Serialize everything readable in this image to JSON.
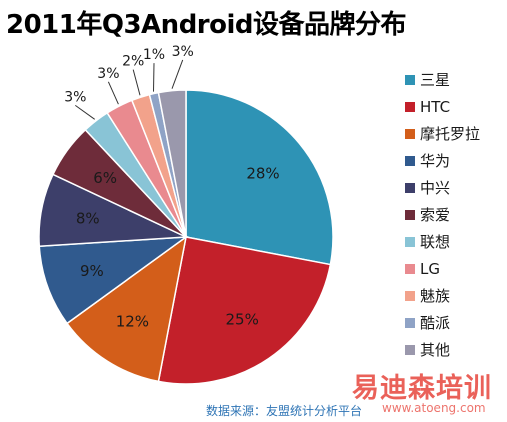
{
  "chart_data": {
    "type": "pie",
    "title": "2011年Q3Android设备品牌分布",
    "categories": [
      "三星",
      "HTC",
      "摩托罗拉",
      "华为",
      "中兴",
      "索爱",
      "联想",
      "LG",
      "魅族",
      "酷派",
      "其他"
    ],
    "values": [
      28,
      25,
      12,
      9,
      8,
      6,
      3,
      3,
      2,
      1,
      3
    ],
    "data_labels": [
      "28%",
      "25%",
      "12%",
      "9%",
      "8%",
      "6%",
      "3%",
      "3%",
      "2%",
      "1%",
      "3%"
    ],
    "colors": [
      "#2e93b5",
      "#c3202a",
      "#d35e1a",
      "#305a8e",
      "#3d3f6a",
      "#6e2c3a",
      "#89c4d6",
      "#e98a8f",
      "#f2a28b",
      "#8fa3c6",
      "#9a98ac"
    ],
    "legend_position": "right",
    "start_angle_deg": 0,
    "direction": "clockwise"
  },
  "source": "数据来源：友盟统计分析平台",
  "watermark": {
    "text": "易迪森培训",
    "url": "www.atoeng.com"
  }
}
